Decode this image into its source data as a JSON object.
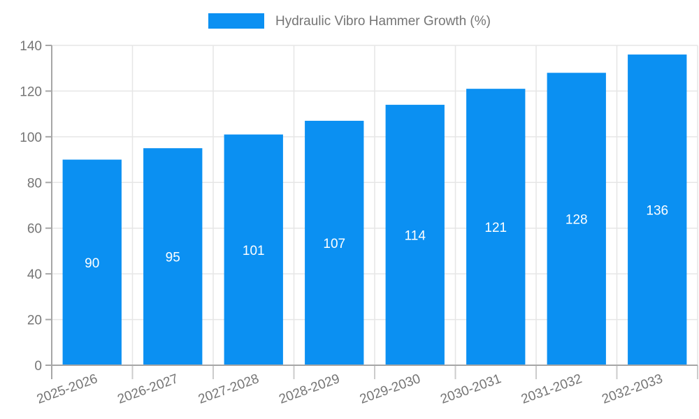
{
  "legend": {
    "position": "top",
    "label": "Hydraulic Vibro Hammer Growth (%)"
  },
  "chart_data": {
    "type": "bar",
    "title": "",
    "series_name": "Hydraulic Vibro Hammer Growth (%)",
    "categories": [
      "2025-2026",
      "2026-2027",
      "2027-2028",
      "2028-2029",
      "2029-2030",
      "2030-2031",
      "2031-2032",
      "2032-2033"
    ],
    "values": [
      90,
      95,
      101,
      107,
      114,
      121,
      128,
      136
    ],
    "xlabel": "",
    "ylabel": "",
    "ylim": [
      0,
      140
    ],
    "ytick_step": 20,
    "yticks": [
      0,
      20,
      40,
      60,
      80,
      100,
      120,
      140
    ],
    "grid": true,
    "legend_position": "top",
    "value_labels": "inside-center",
    "x_label_rotation_deg": -20,
    "colors": {
      "bar": "#0b90f2",
      "value_label": "#ffffff",
      "axis_text": "#757575",
      "axis_line": "#a6a6a6",
      "grid": "#e6e6e6",
      "x_tick": "#cccccc",
      "background": "#ffffff"
    }
  }
}
